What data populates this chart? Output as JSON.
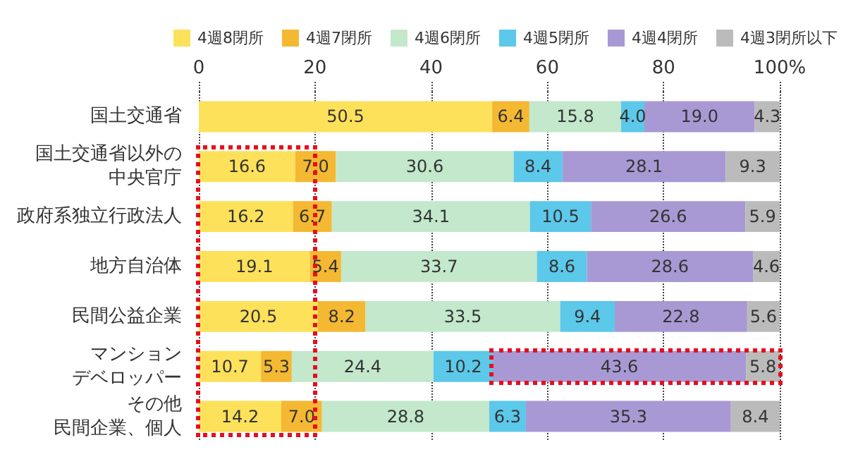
{
  "chart_data": {
    "type": "bar",
    "orientation": "horizontal",
    "stacked": true,
    "categories": [
      "国土交通省",
      "国土交通省以外の中央官庁",
      "政府系独立行政法人",
      "地方自治体",
      "民間公益企業",
      "マンションデベロッパー",
      "その他民間企業、個人"
    ],
    "series": [
      {
        "name": "4週8閉所",
        "color": "#fde15a",
        "values": [
          50.5,
          16.6,
          16.2,
          19.1,
          20.5,
          10.7,
          14.2
        ],
        "value_labels": [
          "50.5",
          "16.6",
          "16.2",
          "19.1",
          "20.5",
          "10.7",
          "14.2"
        ]
      },
      {
        "name": "4週7閉所",
        "color": "#f4b832",
        "values": [
          6.4,
          7.0,
          6.7,
          5.4,
          8.2,
          5.3,
          7.0
        ],
        "value_labels": [
          "6.4",
          "7.0",
          "6.7",
          "5.4",
          "8.2",
          "5.3",
          "7.0"
        ]
      },
      {
        "name": "4週6閉所",
        "color": "#c3e8cc",
        "values": [
          15.8,
          30.6,
          34.1,
          33.7,
          33.5,
          24.4,
          28.8
        ],
        "value_labels": [
          "15.8",
          "30.6",
          "34.1",
          "33.7",
          "33.5",
          "24.4",
          "28.8"
        ]
      },
      {
        "name": "4週5閉所",
        "color": "#5cc8ea",
        "values": [
          4.0,
          8.4,
          10.5,
          8.6,
          9.4,
          10.2,
          6.3
        ],
        "value_labels": [
          "4.0",
          "8.4",
          "10.5",
          "8.6",
          "9.4",
          "10.2",
          "6.3"
        ]
      },
      {
        "name": "4週4閉所",
        "color": "#a899d4",
        "values": [
          19.0,
          28.1,
          26.6,
          28.6,
          22.8,
          43.6,
          35.3
        ],
        "value_labels": [
          "19.0",
          "28.1",
          "26.6",
          "28.6",
          "22.8",
          "43.6",
          "35.3"
        ]
      },
      {
        "name": "4週3閉所以下",
        "color": "#bcbbbb",
        "values": [
          4.3,
          9.3,
          5.9,
          4.6,
          5.6,
          5.8,
          8.4
        ],
        "value_labels": [
          "4.3",
          "9.3",
          "5.9",
          "4.6",
          "5.6",
          "5.8",
          "8.4"
        ]
      }
    ],
    "xlim": [
      0,
      100
    ],
    "xticks": [
      0,
      20,
      40,
      60,
      80,
      {
        "value": 100,
        "label": "100%"
      }
    ],
    "grid": "x",
    "legend": "top"
  }
}
